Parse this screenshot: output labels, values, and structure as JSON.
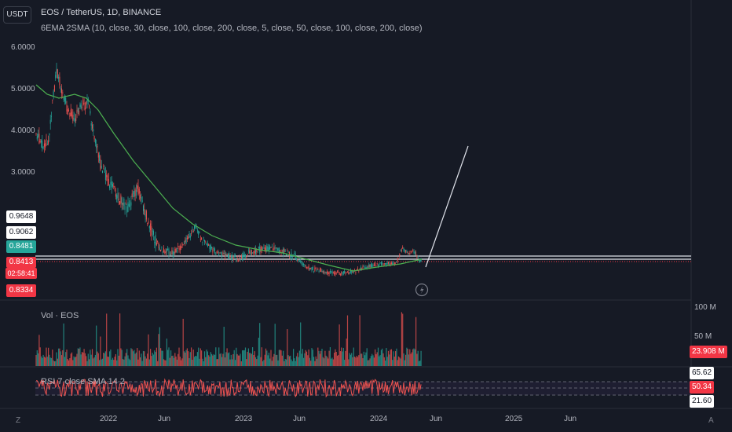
{
  "toolbar": {
    "currency_button": "USDT"
  },
  "legend": {
    "title": "EOS / TetherUS, 1D, BINANCE",
    "indicator": "6EMA 2SMA (10, close, 30, close, 100, close, 200, close, 5, close, 50, close, 100, close, 200, close)"
  },
  "price_axis": {
    "ticks": [
      "6.0000",
      "5.0000",
      "4.0000",
      "3.0000"
    ]
  },
  "price_tags": {
    "t1": "0.9648",
    "t2": "0.9062",
    "t3": "0.8481",
    "t4": "0.8413",
    "countdown": "02:58:41",
    "t5": "0.8334"
  },
  "volume": {
    "label": "Vol · EOS",
    "axis_high": "100 M",
    "axis_mid": "50 M",
    "current": "23.908 M"
  },
  "rsi": {
    "label": "RSI 7 close SMA 14 2",
    "upper": "65.62",
    "current": "50.34",
    "lower": "21.60"
  },
  "time_axis": {
    "ticks": [
      "2022",
      "Jun",
      "2023",
      "Jun",
      "2024",
      "Jun",
      "2025",
      "Jun"
    ]
  },
  "footer": {
    "left_icon": "Z",
    "right_icon": "A"
  },
  "colors": {
    "up": "#26a69a",
    "down": "#ef5350",
    "ma": "#4caf50",
    "bg": "#161a25",
    "rsi": "#ef5350"
  }
}
